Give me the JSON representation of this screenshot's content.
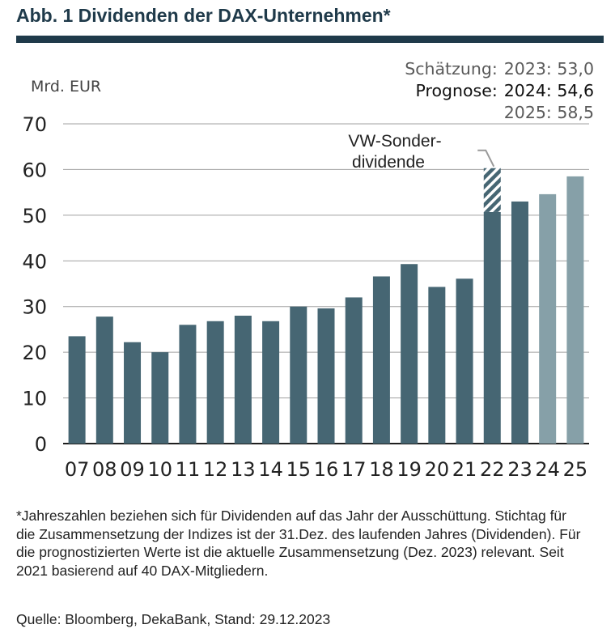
{
  "title": "Abb. 1 Dividenden der DAX-Unternehmen*",
  "unit_label": "Mrd. EUR",
  "annotations": {
    "estimate": {
      "label": "Schätzung:",
      "value": "2023: 53,0"
    },
    "forecast": {
      "label": "Prognose:",
      "value_2024": "2024: 54,6",
      "value_2025": "2025: 58,5"
    },
    "special": "VW-Sonder-\ndividende"
  },
  "colors": {
    "actual": "#466673",
    "forecast": "#86a0a8",
    "special_stripe": "#466673",
    "grid": "#a0a0a0",
    "title": "#1f3a4a"
  },
  "chart_data": {
    "type": "bar",
    "title": "Abb. 1 Dividenden der DAX-Unternehmen*",
    "ylabel": "Mrd. EUR",
    "xlabel": "",
    "ylim": [
      0,
      70
    ],
    "yticks": [
      0,
      10,
      20,
      30,
      40,
      50,
      60,
      70
    ],
    "grid": true,
    "categories": [
      "07",
      "08",
      "09",
      "10",
      "11",
      "12",
      "13",
      "14",
      "15",
      "16",
      "17",
      "18",
      "19",
      "20",
      "21",
      "22",
      "23",
      "24",
      "25"
    ],
    "values": [
      23.5,
      27.8,
      22.2,
      20.0,
      26.0,
      26.8,
      28.0,
      26.8,
      30.0,
      29.6,
      32.0,
      36.6,
      39.3,
      34.3,
      36.1,
      50.7,
      53.0,
      54.6,
      58.5
    ],
    "special_dividend": {
      "category": "22",
      "base": 50.7,
      "top": 60.3
    },
    "forecast_categories": [
      "24",
      "25"
    ]
  },
  "footnote": "*Jahreszahlen beziehen sich für Dividenden auf das Jahr der Ausschüttung. Stichtag für die Zusammensetzung der Indizes ist der 31.Dez. des laufenden Jahres (Dividenden). Für die prognostizierten Werte ist die aktuelle Zusammensetzung (Dez. 2023) relevant. Seit 2021 basierend auf 40 DAX-Mitgliedern.",
  "source": "Quelle: Bloomberg, DekaBank, Stand: 29.12.2023"
}
